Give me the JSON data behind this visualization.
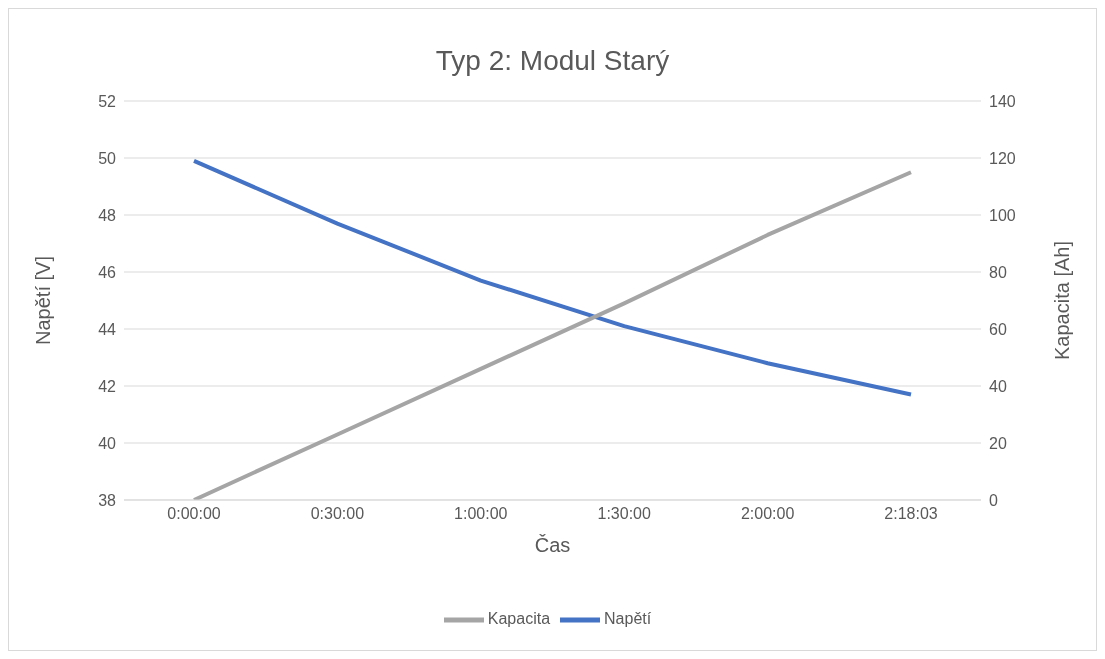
{
  "chart_data": {
    "type": "line",
    "title": "Typ 2: Modul Starý",
    "xlabel": "Čas",
    "ylabel": "Napětí [V]",
    "y2label": "Kapacita [Ah]",
    "categories": [
      "0:00:00",
      "0:30:00",
      "1:00:00",
      "1:30:00",
      "2:00:00",
      "2:18:03"
    ],
    "series": [
      {
        "name": "Napětí",
        "color": "#4472c4",
        "values": [
          49.9,
          47.7,
          45.7,
          44.1,
          42.8,
          41.7
        ]
      },
      {
        "name": "Kapacita",
        "color": "#a5a5a5",
        "axis": "y2",
        "values": [
          0,
          23,
          46,
          69,
          93,
          115
        ]
      }
    ],
    "ylim": [
      38,
      52
    ],
    "yticks": [
      38,
      40,
      42,
      44,
      46,
      48,
      50,
      52
    ],
    "y2lim": [
      0,
      140
    ],
    "y2ticks": [
      0,
      20,
      40,
      60,
      80,
      100,
      120,
      140
    ],
    "grid": "y",
    "legend": "bottom",
    "marker": "none",
    "line_style": "solid"
  }
}
